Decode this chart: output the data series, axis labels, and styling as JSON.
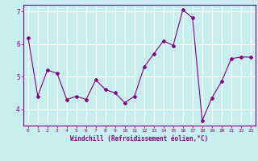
{
  "x": [
    0,
    1,
    2,
    3,
    4,
    5,
    6,
    7,
    8,
    9,
    10,
    11,
    12,
    13,
    14,
    15,
    16,
    17,
    18,
    19,
    20,
    21,
    22,
    23
  ],
  "y": [
    6.2,
    4.4,
    5.2,
    5.1,
    4.3,
    4.4,
    4.3,
    4.9,
    4.6,
    4.5,
    4.2,
    4.4,
    5.3,
    5.7,
    6.1,
    5.95,
    7.05,
    6.8,
    3.65,
    4.35,
    4.85,
    5.55,
    5.6,
    5.6
  ],
  "xlabel": "Windchill (Refroidissement éolien,°C)",
  "ylim": [
    3.5,
    7.2
  ],
  "xlim": [
    -0.5,
    23.5
  ],
  "yticks": [
    4,
    5,
    6,
    7
  ],
  "xticks": [
    0,
    1,
    2,
    3,
    4,
    5,
    6,
    7,
    8,
    9,
    10,
    11,
    12,
    13,
    14,
    15,
    16,
    17,
    18,
    19,
    20,
    21,
    22,
    23
  ],
  "line_color": "#800080",
  "marker": "D",
  "marker_size": 2,
  "bg_color": "#c8eef0",
  "grid_color": "#ffffff",
  "label_color": "#800080",
  "tick_color": "#800080",
  "border_color": "#800080"
}
